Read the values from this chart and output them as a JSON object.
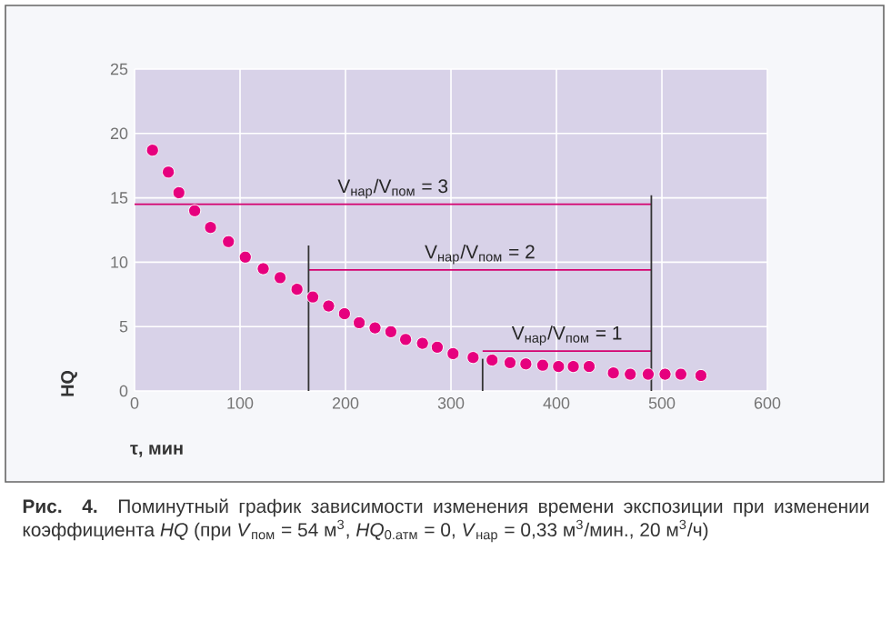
{
  "chart_data": {
    "type": "scatter",
    "xlabel": "τ, мин",
    "ylabel": "HQ",
    "xlim": [
      0,
      600
    ],
    "ylim": [
      0,
      25
    ],
    "xticks": [
      0,
      100,
      200,
      300,
      400,
      500,
      600
    ],
    "yticks": [
      0,
      5,
      10,
      15,
      20,
      25
    ],
    "grid": true,
    "marker": "circle",
    "series": [
      {
        "color": "#e6007e",
        "x": [
          17,
          32,
          42,
          57,
          72,
          89,
          105,
          122,
          138,
          154,
          169,
          184,
          199,
          213,
          228,
          243,
          257,
          273,
          287,
          302,
          321,
          339,
          356,
          371,
          387,
          402,
          416,
          431,
          454,
          470,
          487,
          503,
          518,
          537
        ],
        "values": [
          18.7,
          17.0,
          15.4,
          14.0,
          12.7,
          11.6,
          10.4,
          9.5,
          8.8,
          7.9,
          7.3,
          6.6,
          6.0,
          5.3,
          4.9,
          4.6,
          4.0,
          3.7,
          3.4,
          2.9,
          2.6,
          2.4,
          2.2,
          2.1,
          2.0,
          1.9,
          1.9,
          1.9,
          1.4,
          1.3,
          1.3,
          1.3,
          1.3,
          1.2
        ]
      },
      {
        "type": "line",
        "name": "V$_{нар}$/V$_{пом}$ = 3",
        "marker": "none",
        "color": "#d4006f",
        "x": [
          0,
          490
        ],
        "values": [
          14.5,
          14.5
        ]
      },
      {
        "type": "line",
        "name": "V$_{нар}$/V$_{пом}$ = 2",
        "marker": "none",
        "color": "#d4006f",
        "x": [
          165,
          490
        ],
        "values": [
          9.4,
          9.4
        ]
      },
      {
        "type": "line",
        "name": "V$_{нар}$/V$_{пом}$ = 1",
        "marker": "none",
        "color": "#d4006f",
        "x": [
          330,
          490
        ],
        "values": [
          3.1,
          3.1
        ]
      },
      {
        "type": "line",
        "marker": "none",
        "color": "#333333",
        "x": [
          165,
          165
        ],
        "values": [
          0,
          11.3
        ]
      },
      {
        "type": "line",
        "marker": "none",
        "color": "#333333",
        "x": [
          330,
          330
        ],
        "values": [
          0,
          2.5
        ]
      },
      {
        "type": "line",
        "marker": "none",
        "color": "#333333",
        "x": [
          490,
          490
        ],
        "values": [
          0,
          15.2
        ]
      }
    ],
    "annotations": [
      "**Рис. 4.** Поминутный график зависимости изменения времени экспозиции при изменении коэффициента *HQ* (при *V*$_{пом}$ = 54 м$^{3}$, *HQ*$_{0.атм}$ = 0, *V*$_{нар}$ = 0,33 м$^{3}$/мин., 20 м$^{3}$/ч)"
    ]
  }
}
